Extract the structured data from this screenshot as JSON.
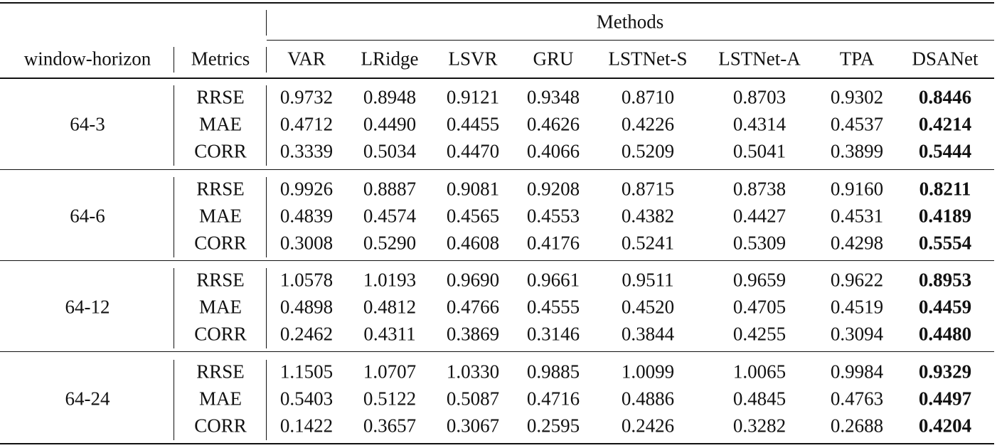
{
  "table": {
    "methods_header": "Methods",
    "columns": {
      "window_horizon": "window-horizon",
      "metrics": "Metrics",
      "methods": [
        "VAR",
        "LRidge",
        "LSVR",
        "GRU",
        "LSTNet-S",
        "LSTNet-A",
        "TPA",
        "DSANet"
      ]
    },
    "bold_method": "DSANet",
    "groups": [
      {
        "window_horizon": "64-3",
        "rows": [
          {
            "metric": "RRSE",
            "values": [
              "0.9732",
              "0.8948",
              "0.9121",
              "0.9348",
              "0.8710",
              "0.8703",
              "0.9302",
              "0.8446"
            ]
          },
          {
            "metric": "MAE",
            "values": [
              "0.4712",
              "0.4490",
              "0.4455",
              "0.4626",
              "0.4226",
              "0.4314",
              "0.4537",
              "0.4214"
            ]
          },
          {
            "metric": "CORR",
            "values": [
              "0.3339",
              "0.5034",
              "0.4470",
              "0.4066",
              "0.5209",
              "0.5041",
              "0.3899",
              "0.5444"
            ]
          }
        ]
      },
      {
        "window_horizon": "64-6",
        "rows": [
          {
            "metric": "RRSE",
            "values": [
              "0.9926",
              "0.8887",
              "0.9081",
              "0.9208",
              "0.8715",
              "0.8738",
              "0.9160",
              "0.8211"
            ]
          },
          {
            "metric": "MAE",
            "values": [
              "0.4839",
              "0.4574",
              "0.4565",
              "0.4553",
              "0.4382",
              "0.4427",
              "0.4531",
              "0.4189"
            ]
          },
          {
            "metric": "CORR",
            "values": [
              "0.3008",
              "0.5290",
              "0.4608",
              "0.4176",
              "0.5241",
              "0.5309",
              "0.4298",
              "0.5554"
            ]
          }
        ]
      },
      {
        "window_horizon": "64-12",
        "rows": [
          {
            "metric": "RRSE",
            "values": [
              "1.0578",
              "1.0193",
              "0.9690",
              "0.9661",
              "0.9511",
              "0.9659",
              "0.9622",
              "0.8953"
            ]
          },
          {
            "metric": "MAE",
            "values": [
              "0.4898",
              "0.4812",
              "0.4766",
              "0.4555",
              "0.4520",
              "0.4705",
              "0.4519",
              "0.4459"
            ]
          },
          {
            "metric": "CORR",
            "values": [
              "0.2462",
              "0.4311",
              "0.3869",
              "0.3146",
              "0.3844",
              "0.4255",
              "0.3094",
              "0.4480"
            ]
          }
        ]
      },
      {
        "window_horizon": "64-24",
        "rows": [
          {
            "metric": "RRSE",
            "values": [
              "1.1505",
              "1.0707",
              "1.0330",
              "0.9885",
              "1.0099",
              "1.0065",
              "0.9984",
              "0.9329"
            ]
          },
          {
            "metric": "MAE",
            "values": [
              "0.5403",
              "0.5122",
              "0.5087",
              "0.4716",
              "0.4886",
              "0.4845",
              "0.4763",
              "0.4497"
            ]
          },
          {
            "metric": "CORR",
            "values": [
              "0.1422",
              "0.3657",
              "0.3067",
              "0.2595",
              "0.2426",
              "0.3282",
              "0.2688",
              "0.4204"
            ]
          }
        ]
      }
    ]
  }
}
